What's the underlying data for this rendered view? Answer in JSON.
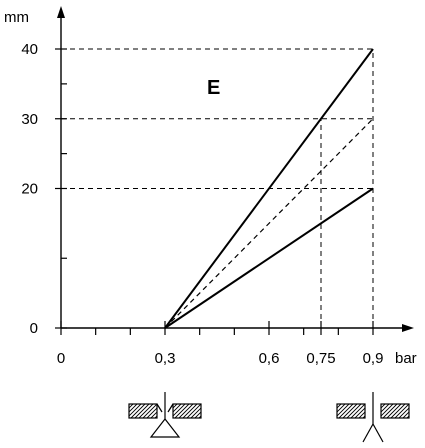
{
  "chart_data": {
    "type": "line",
    "title": "",
    "panel_label": "E",
    "xlabel": "bar",
    "ylabel": "mm",
    "xlim": [
      0,
      1.0
    ],
    "ylim": [
      0,
      44
    ],
    "x_ticks": [
      {
        "value": 0,
        "label": "0"
      },
      {
        "value": 0.3,
        "label": "0,3"
      },
      {
        "value": 0.6,
        "label": "0,6"
      },
      {
        "value": 0.75,
        "label": "0,75"
      },
      {
        "value": 0.9,
        "label": "0,9"
      }
    ],
    "x_minor_ticks": [
      0.1,
      0.2,
      0.4,
      0.5,
      0.7,
      0.8
    ],
    "y_ticks": [
      {
        "value": 0,
        "label": "0"
      },
      {
        "value": 20,
        "label": "20"
      },
      {
        "value": 30,
        "label": "30"
      },
      {
        "value": 40,
        "label": "40"
      }
    ],
    "y_minor_ticks": [
      10,
      25,
      35
    ],
    "grid": false,
    "series": [
      {
        "style": "solid",
        "points": [
          [
            0.3,
            0
          ],
          [
            0.9,
            40
          ]
        ]
      },
      {
        "style": "dashed",
        "points": [
          [
            0.3,
            0
          ],
          [
            0.9,
            30
          ]
        ]
      },
      {
        "style": "solid",
        "points": [
          [
            0.3,
            0
          ],
          [
            0.9,
            20
          ]
        ]
      }
    ],
    "guides": [
      {
        "style": "dashed",
        "points": [
          [
            0,
            40
          ],
          [
            0.9,
            40
          ]
        ]
      },
      {
        "style": "dashed",
        "points": [
          [
            0,
            30
          ],
          [
            0.9,
            30
          ]
        ]
      },
      {
        "style": "dashed",
        "points": [
          [
            0,
            20
          ],
          [
            0.9,
            20
          ]
        ]
      },
      {
        "style": "dashed",
        "points": [
          [
            0.75,
            0
          ],
          [
            0.75,
            30
          ]
        ]
      },
      {
        "style": "dashed",
        "points": [
          [
            0.9,
            0
          ],
          [
            0.9,
            40
          ]
        ]
      }
    ],
    "valve_symbols": [
      {
        "name": "valve-closed-symbol",
        "x": 0.3
      },
      {
        "name": "valve-open-symbol",
        "x": 0.9
      }
    ]
  }
}
